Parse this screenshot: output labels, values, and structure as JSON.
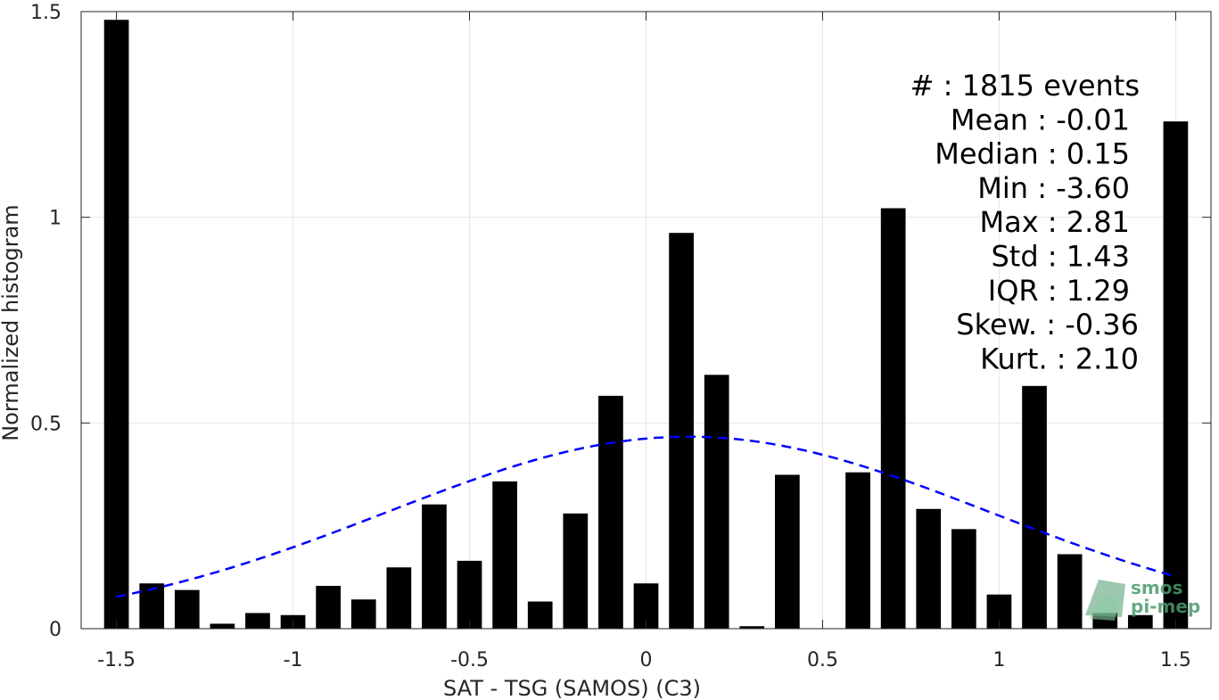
{
  "chart_data": {
    "type": "bar",
    "xlabel": "SAT - TSG (SAMOS) (C3)",
    "ylabel": "Normalized histogram",
    "xlim": [
      -1.6,
      1.6
    ],
    "ylim": [
      0,
      1.5
    ],
    "x_ticks": [
      -1.5,
      -1,
      -0.5,
      0,
      0.5,
      1,
      1.5
    ],
    "x_tick_labels": [
      "-1.5",
      "-1",
      "-0.5",
      "0",
      "0.5",
      "1",
      "1.5"
    ],
    "y_ticks": [
      0,
      0.5,
      1,
      1.5
    ],
    "y_tick_labels": [
      "0",
      "0.5",
      "1",
      "1.5"
    ],
    "grid": true,
    "bar_color": "#000000",
    "bin_width": 0.1,
    "x": [
      -1.5,
      -1.4,
      -1.3,
      -1.2,
      -1.1,
      -1.0,
      -0.9,
      -0.8,
      -0.7,
      -0.6,
      -0.5,
      -0.4,
      -0.3,
      -0.2,
      -0.1,
      0.0,
      0.1,
      0.2,
      0.3,
      0.4,
      0.5,
      0.6,
      0.7,
      0.8,
      0.9,
      1.0,
      1.1,
      1.2,
      1.3,
      1.4,
      1.5
    ],
    "values": [
      1.48,
      0.11,
      0.094,
      0.012,
      0.038,
      0.033,
      0.104,
      0.071,
      0.149,
      0.302,
      0.165,
      0.358,
      0.066,
      0.28,
      0.566,
      0.11,
      0.962,
      0.617,
      0.006,
      0.374,
      0.0,
      0.38,
      1.022,
      0.291,
      0.242,
      0.083,
      0.59,
      0.181,
      0.038,
      0.033,
      1.233
    ],
    "fit_curve": {
      "type": "normal",
      "style": "dashed",
      "color": "#0000ff",
      "mean": 0.12,
      "std": 0.855,
      "x_range": [
        -1.5,
        1.5
      ]
    }
  },
  "stats": [
    "#  : 1815 events",
    "Mean : -0.01",
    "Median : 0.15",
    "Min : -3.60",
    "Max : 2.81",
    "Std : 1.43",
    "IQR : 1.29",
    "Skew. : -0.36",
    "Kurt. : 2.10"
  ],
  "logo": {
    "line1": "smos",
    "line2": "pi-mep",
    "color": "#4a9a6e"
  }
}
